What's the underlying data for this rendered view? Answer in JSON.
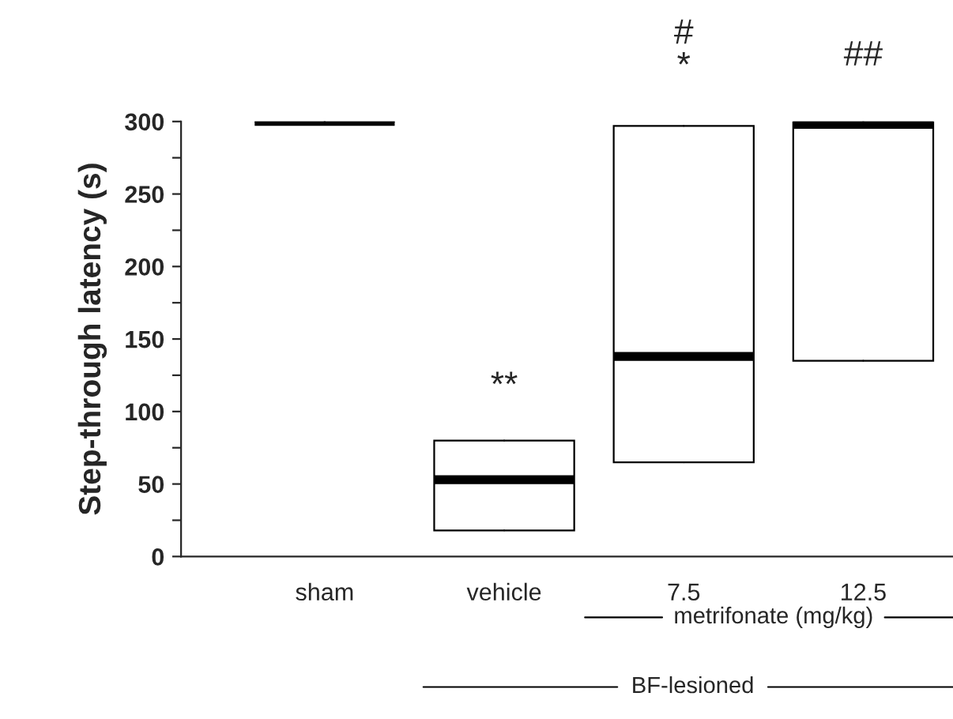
{
  "chart_data": {
    "type": "box",
    "ylabel": "Step-through latency (s)",
    "categories": [
      "sham",
      "vehicle",
      "7.5",
      "12.5"
    ],
    "boxes": [
      {
        "low": 300,
        "q1": 300,
        "median": 300,
        "q3": 300,
        "high": 300
      },
      {
        "low": 18,
        "q1": 18,
        "median": 53,
        "q3": 80,
        "high": 80
      },
      {
        "low": 65,
        "q1": 65,
        "median": 138,
        "q3": 297,
        "high": 297
      },
      {
        "low": 135,
        "q1": 135,
        "median": 298,
        "q3": 300,
        "high": 300
      }
    ],
    "ylim": [
      0,
      300
    ],
    "yticks": [
      0,
      {
        "value": 25,
        "label": null
      },
      50,
      {
        "value": 75,
        "label": null
      },
      100,
      {
        "value": 125,
        "label": null
      },
      150,
      {
        "value": 175,
        "label": null
      },
      200,
      {
        "value": 225,
        "label": null
      },
      250,
      {
        "value": 275,
        "label": null
      },
      300
    ],
    "grid": false,
    "annotations": [
      "**",
      "*",
      "#",
      "##",
      "metrifonate (mg/kg)",
      "BF-lesioned"
    ]
  }
}
